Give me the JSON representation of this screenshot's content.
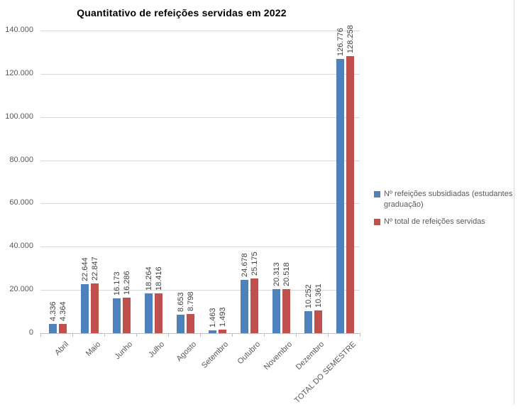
{
  "title": "Quantitativo de refeições servidas em 2022",
  "colors": {
    "series_blue": "#4F81BD",
    "series_red": "#C0504D",
    "gridline": "#D9D9D9",
    "axis_line": "#BFBFBF",
    "tick_text": "#595959",
    "data_label_text": "#404040",
    "legend_text": "#595959",
    "title_text": "#000000",
    "background": "#FFFFFF"
  },
  "legend": {
    "position": "right",
    "items": [
      {
        "swatch_color": "#4F81BD",
        "label": "Nº refeições subsidiadas (estudantes graduação)"
      },
      {
        "swatch_color": "#C0504D",
        "label": "Nº total de refeições servidas"
      }
    ]
  },
  "chart_data": {
    "type": "bar",
    "title": "Quantitativo de refeições servidas em 2022",
    "categories": [
      "Abril",
      "Maio",
      "Junho",
      "Julho",
      "Agosto",
      "Setembro",
      "Outubro",
      "Novembro",
      "Dezembro",
      "TOTAL DO SEMESTRE"
    ],
    "series": [
      {
        "name": "Nº refeições subsidiadas (estudantes graduação)",
        "color": "#4F81BD",
        "values": [
          4336,
          22644,
          16173,
          18264,
          8653,
          1463,
          24678,
          20313,
          10252,
          126776
        ],
        "labels": [
          "4.336",
          "22.644",
          "16.173",
          "18.264",
          "8.653",
          "1.463",
          "24.678",
          "20.313",
          "10.252",
          "126.776"
        ]
      },
      {
        "name": "Nº total de refeições servidas",
        "color": "#C0504D",
        "values": [
          4364,
          22847,
          16286,
          18416,
          8798,
          1493,
          25175,
          20518,
          10361,
          128258
        ],
        "labels": [
          "4.364",
          "22.847",
          "16.286",
          "18.416",
          "8.798",
          "1.493",
          "25.175",
          "20.518",
          "10.361",
          "128.258"
        ]
      }
    ],
    "xlabel": "",
    "ylabel": "",
    "ylim": [
      0,
      140000
    ],
    "y_ticks": {
      "values": [
        0,
        20000,
        40000,
        60000,
        80000,
        100000,
        120000,
        140000
      ],
      "labels": [
        "0",
        "20.000",
        "40.000",
        "60.000",
        "80.000",
        "100.000",
        "120.000",
        "140.000"
      ]
    },
    "grid": true,
    "data_labels_rotated": true,
    "category_labels_rotated": true,
    "legend_position": "right"
  }
}
